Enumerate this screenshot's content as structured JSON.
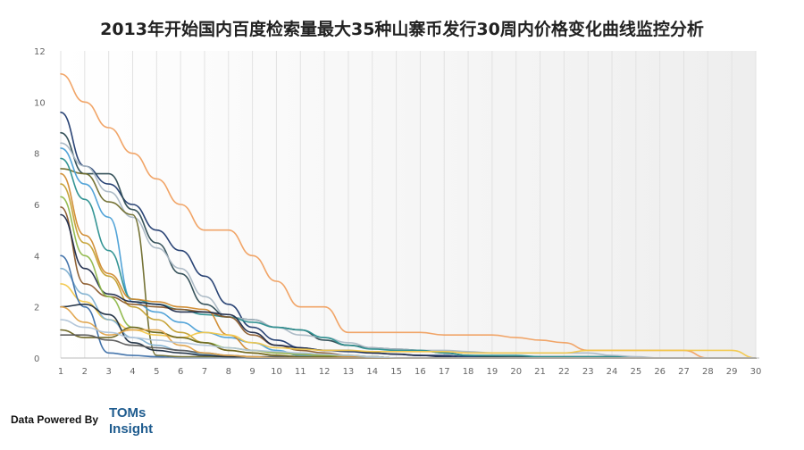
{
  "chart_data": {
    "type": "line",
    "title": "2013年开始国内百度检索量最大35种山寨币发行30周内价格变化曲线监控分析",
    "xlabel": "",
    "ylabel": "",
    "x": [
      1,
      2,
      3,
      4,
      5,
      6,
      7,
      8,
      9,
      10,
      11,
      12,
      13,
      14,
      15,
      16,
      17,
      18,
      19,
      20,
      21,
      22,
      23,
      24,
      25,
      26,
      27,
      28,
      29,
      30
    ],
    "ylim": [
      0,
      12
    ],
    "yticks": [
      0,
      2,
      4,
      6,
      8,
      10,
      12
    ],
    "grid": "vertical",
    "legend": "none",
    "series": [
      {
        "color": "#f0a060",
        "values": [
          11.1,
          10,
          9,
          8,
          7,
          6,
          5,
          5,
          4,
          3,
          2,
          2,
          1,
          1,
          1,
          1,
          0.9,
          0.9,
          0.9,
          0.8,
          0.7,
          0.6,
          0.3,
          0.3,
          0.3,
          0.3,
          0.3,
          0,
          0,
          0
        ]
      },
      {
        "color": "#1f3a6e",
        "values": [
          9.6,
          7.5,
          6.8,
          6,
          5,
          4.2,
          3.2,
          2.1,
          1.2,
          0.7,
          0.4,
          0.3,
          0.25,
          0.2,
          0.15,
          0.1,
          0.1,
          0.05,
          0.05,
          0,
          0,
          0,
          0,
          0,
          0,
          0,
          0,
          0,
          0,
          0
        ]
      },
      {
        "color": "#2c4a52",
        "values": [
          8.8,
          7.2,
          7.2,
          5.8,
          4.5,
          3.3,
          2.1,
          1.6,
          1.5,
          1.2,
          1.1,
          0.7,
          0.5,
          0.4,
          0.35,
          0.3,
          0.2,
          0.1,
          0.05,
          0.05,
          0.05,
          0.05,
          0.05,
          0.05,
          0,
          0,
          0,
          0,
          0,
          0
        ]
      },
      {
        "color": "#aab8c4",
        "values": [
          8.4,
          7.5,
          6.5,
          5.5,
          4.3,
          3.5,
          2.4,
          1.6,
          1.5,
          1.2,
          0.9,
          0.8,
          0.6,
          0.4,
          0.35,
          0.3,
          0.3,
          0.25,
          0.2,
          0.2,
          0.2,
          0.2,
          0.2,
          0.1,
          0.05,
          0,
          0,
          0,
          0,
          0
        ]
      },
      {
        "color": "#6e6b2b",
        "values": [
          7.4,
          7.2,
          6.1,
          5.6,
          0.1,
          0.05,
          0.05,
          0.05,
          0,
          0,
          0,
          0,
          0,
          0,
          0,
          0,
          0,
          0,
          0,
          0,
          0,
          0,
          0,
          0,
          0,
          0,
          0,
          0,
          0,
          0
        ]
      },
      {
        "color": "#4a9fd6",
        "values": [
          8.2,
          6.8,
          5.5,
          2.2,
          1.8,
          1.4,
          1,
          0.8,
          0.6,
          0.3,
          0.1,
          0.1,
          0.05,
          0.05,
          0,
          0,
          0,
          0,
          0,
          0,
          0,
          0,
          0,
          0,
          0,
          0,
          0,
          0,
          0,
          0
        ]
      },
      {
        "color": "#2a8f8f",
        "values": [
          7.8,
          6.2,
          4.2,
          2.3,
          2.1,
          1.9,
          1.7,
          1.6,
          1.4,
          1.2,
          1.1,
          0.8,
          0.5,
          0.35,
          0.3,
          0.3,
          0.2,
          0.1,
          0.1,
          0.1,
          0.05,
          0.05,
          0.05,
          0.05,
          0,
          0,
          0,
          0,
          0,
          0
        ]
      },
      {
        "color": "#d08a2e",
        "values": [
          7.2,
          4.8,
          3.3,
          2.3,
          2.2,
          2,
          1.9,
          0.9,
          0.3,
          0.2,
          0.15,
          0.1,
          0.05,
          0.05,
          0,
          0,
          0,
          0,
          0,
          0,
          0,
          0,
          0,
          0,
          0,
          0,
          0,
          0,
          0,
          0
        ]
      },
      {
        "color": "#c4a030",
        "values": [
          6.8,
          4.5,
          3.2,
          2,
          1.5,
          1,
          0.6,
          0.3,
          0.2,
          0.1,
          0.05,
          0,
          0,
          0,
          0,
          0,
          0,
          0,
          0,
          0,
          0,
          0,
          0,
          0,
          0,
          0,
          0,
          0,
          0,
          0
        ]
      },
      {
        "color": "#8a5a2b",
        "values": [
          5.9,
          2.9,
          2.4,
          2.1,
          2,
          1.9,
          1.8,
          1.6,
          0.9,
          0.5,
          0.3,
          0.2,
          0.1,
          0.05,
          0,
          0,
          0,
          0,
          0,
          0,
          0,
          0,
          0,
          0,
          0,
          0,
          0,
          0,
          0,
          0
        ]
      },
      {
        "color": "#1e2a4a",
        "values": [
          5.6,
          3.5,
          2.5,
          2.2,
          2.1,
          1.8,
          1.8,
          1.7,
          1,
          0.5,
          0.4,
          0.3,
          0.3,
          0.2,
          0.15,
          0.1,
          0.05,
          0,
          0,
          0,
          0,
          0,
          0,
          0,
          0,
          0,
          0,
          0,
          0,
          0
        ]
      },
      {
        "color": "#8fb84a",
        "values": [
          6.3,
          4,
          2.4,
          1.2,
          1,
          0.8,
          0.6,
          0.4,
          0.3,
          0.2,
          0.15,
          0.1,
          0.1,
          0.05,
          0,
          0,
          0,
          0,
          0,
          0,
          0,
          0,
          0,
          0,
          0,
          0,
          0,
          0,
          0,
          0
        ]
      },
      {
        "color": "#f2c84b",
        "values": [
          2.9,
          2.2,
          1.5,
          1.1,
          0.9,
          0.8,
          1,
          0.9,
          0.6,
          0.4,
          0.35,
          0.3,
          0.3,
          0.25,
          0.25,
          0.25,
          0.25,
          0.2,
          0.2,
          0.2,
          0.2,
          0.2,
          0.3,
          0.3,
          0.3,
          0.3,
          0.3,
          0.3,
          0.3,
          0
        ]
      },
      {
        "color": "#7fb0d0",
        "values": [
          3.5,
          2.5,
          1.5,
          0.8,
          0.5,
          0.3,
          0.15,
          0.1,
          0.05,
          0,
          0,
          0,
          0,
          0,
          0,
          0,
          0,
          0,
          0,
          0,
          0,
          0,
          0,
          0,
          0,
          0,
          0,
          0,
          0,
          0
        ]
      },
      {
        "color": "#3b6ea8",
        "values": [
          4,
          2,
          0.2,
          0.1,
          0.05,
          0,
          0,
          0,
          0,
          0,
          0,
          0,
          0,
          0,
          0,
          0,
          0,
          0,
          0,
          0,
          0,
          0,
          0,
          0,
          0,
          0,
          0,
          0,
          0,
          0
        ]
      },
      {
        "color": "#1c2d40",
        "values": [
          2,
          2.1,
          1.7,
          0.6,
          0.3,
          0.2,
          0.1,
          0.05,
          0,
          0,
          0,
          0,
          0,
          0,
          0,
          0,
          0,
          0,
          0,
          0,
          0,
          0,
          0,
          0,
          0,
          0,
          0,
          0,
          0,
          0
        ]
      },
      {
        "color": "#6c6420",
        "values": [
          1.1,
          0.8,
          0.8,
          1.2,
          1,
          0.8,
          0.6,
          0.3,
          0.2,
          0.1,
          0.05,
          0.05,
          0,
          0,
          0,
          0,
          0,
          0,
          0,
          0,
          0,
          0,
          0,
          0,
          0,
          0,
          0,
          0,
          0,
          0
        ]
      },
      {
        "color": "#5a5a5a",
        "values": [
          0.9,
          0.9,
          0.7,
          0.5,
          0.4,
          0.3,
          0.2,
          0.1,
          0.05,
          0.05,
          0,
          0,
          0,
          0,
          0,
          0,
          0,
          0,
          0,
          0,
          0,
          0,
          0,
          0,
          0,
          0,
          0,
          0,
          0,
          0
        ]
      },
      {
        "color": "#e0a34a",
        "values": [
          2,
          1.4,
          0.9,
          1.1,
          1.1,
          0.5,
          0.2,
          0.1,
          0.05,
          0,
          0,
          0,
          0,
          0,
          0,
          0,
          0,
          0,
          0,
          0,
          0,
          0,
          0,
          0,
          0,
          0,
          0,
          0,
          0,
          0
        ]
      },
      {
        "color": "#b0c4d8",
        "values": [
          1.5,
          1.2,
          1.0,
          0.8,
          0.7,
          0.6,
          0.5,
          0.4,
          0.3,
          0.25,
          0.2,
          0.15,
          0.1,
          0.05,
          0,
          0,
          0,
          0,
          0,
          0,
          0,
          0,
          0,
          0,
          0,
          0,
          0,
          0,
          0,
          0
        ]
      }
    ]
  },
  "footer": {
    "powered_by": "Data Powered By",
    "brand_line1": "TOMs",
    "brand_line2": "Insight"
  }
}
